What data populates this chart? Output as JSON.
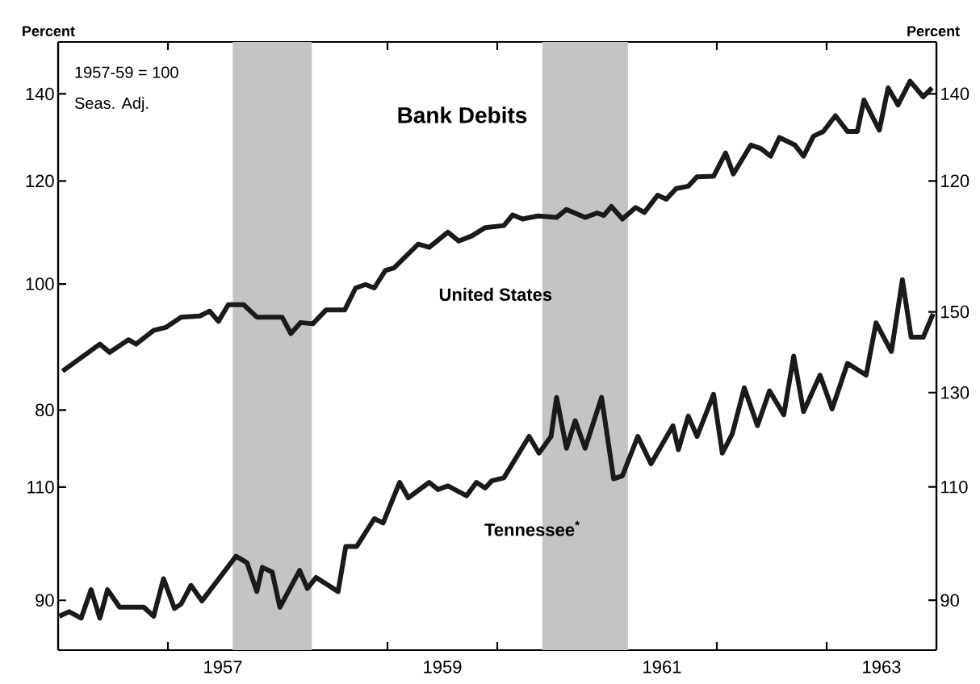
{
  "chart_data": [
    {
      "type": "line",
      "title": "Bank Debits",
      "ylabel": "Percent",
      "y2label": "Percent",
      "annotations": [
        "1957-59 = 100",
        "Seas. Adj."
      ],
      "log": "y",
      "grid": false,
      "marker": "none",
      "line_style": "solid",
      "xlim": [
        1956,
        1964
      ],
      "xticks": [
        {
          "value": 1957,
          "label": null
        },
        {
          "value": 1958,
          "label": null
        },
        {
          "value": 1959,
          "label": null
        },
        {
          "value": 1960,
          "label": null
        },
        {
          "value": 1961,
          "label": null
        },
        {
          "value": 1962,
          "label": null
        },
        {
          "value": 1963,
          "label": null
        },
        {
          "value": 1957.5,
          "label": "1957"
        },
        {
          "value": 1959.5,
          "label": "1959"
        },
        {
          "value": 1961.5,
          "label": "1961"
        },
        {
          "value": 1963.5,
          "label": "1963"
        }
      ],
      "ylim": [
        52.3,
        153.5
      ],
      "yticks": [
        80,
        100,
        120,
        140
      ],
      "y2lim": [
        12.3,
        151.9
      ],
      "y2ticks": [
        120,
        140
      ],
      "bands": [
        {
          "axis": "x",
          "from": 1957.59,
          "to": 1958.31,
          "color": "#c4c4c4"
        },
        {
          "axis": "x",
          "from": 1960.41,
          "to": 1961.19,
          "color": "#c4c4c4"
        }
      ],
      "series": [
        {
          "name": "United States",
          "color": "#1a1a1a",
          "axis": "y",
          "x": [
            1956.04,
            1956.38,
            1956.47,
            1956.64,
            1956.71,
            1956.87,
            1956.98,
            1957.12,
            1957.29,
            1957.38,
            1957.46,
            1957.55,
            1957.69,
            1957.81,
            1958.04,
            1958.12,
            1958.21,
            1958.32,
            1958.44,
            1958.61,
            1958.71,
            1958.8,
            1958.88,
            1958.98,
            1959.06,
            1959.28,
            1959.38,
            1959.55,
            1959.65,
            1959.77,
            1959.89,
            1960.06,
            1960.14,
            1960.23,
            1960.37,
            1960.54,
            1960.63,
            1960.8,
            1960.91,
            1960.97,
            1961.04,
            1961.14,
            1961.26,
            1961.34,
            1961.46,
            1961.54,
            1961.63,
            1961.74,
            1961.82,
            1961.97,
            1962.08,
            1962.15,
            1962.31,
            1962.4,
            1962.49,
            1962.57,
            1962.71,
            1962.79,
            1962.88,
            1962.97,
            1963.08,
            1963.19,
            1963.28,
            1963.34,
            1963.48,
            1963.56,
            1963.65,
            1963.76,
            1963.88,
            1963.96
          ],
          "values": [
            85.7,
            89.9,
            88.6,
            90.6,
            89.9,
            92.1,
            92.6,
            94.3,
            94.5,
            95.3,
            93.6,
            96.4,
            96.4,
            94.3,
            94.3,
            91.6,
            93.4,
            93.2,
            95.5,
            95.5,
            99.3,
            99.9,
            99.3,
            102.4,
            102.9,
            107.3,
            106.7,
            109.6,
            107.9,
            108.9,
            110.5,
            110.9,
            113.0,
            112.2,
            112.8,
            112.5,
            114.1,
            112.5,
            113.4,
            112.9,
            114.7,
            112.2,
            114.5,
            113.5,
            117.0,
            116.2,
            118.4,
            118.9,
            120.9,
            121.0,
            126.1,
            121.5,
            127.9,
            127.1,
            125.4,
            129.6,
            127.9,
            125.4,
            129.9,
            131.0,
            134.7,
            131.0,
            131.0,
            138.5,
            131.3,
            141.5,
            137.3,
            143.2,
            139.3,
            141.5
          ]
        }
      ]
    },
    {
      "type": "line",
      "log": "y2",
      "marker": "none",
      "line_style": "solid",
      "tick_labels": "y",
      "xlim": [
        1956,
        1964
      ],
      "ylim": [
        81.2,
        188.6
      ],
      "yticks": [
        90,
        110
      ],
      "y2lim": [
        82.4,
        241.9
      ],
      "y2ticks": [
        90,
        110,
        130,
        150
      ],
      "series": [
        {
          "name": "Tennessee$^{*}$",
          "color": "#1a1a1a",
          "axis": "y2",
          "x": [
            1956.01,
            1956.1,
            1956.21,
            1956.3,
            1956.38,
            1956.45,
            1956.56,
            1956.78,
            1956.87,
            1956.96,
            1957.06,
            1957.12,
            1957.21,
            1957.31,
            1957.62,
            1957.72,
            1957.81,
            1957.86,
            1957.95,
            1958.02,
            1958.2,
            1958.27,
            1958.35,
            1958.55,
            1958.62,
            1958.72,
            1958.88,
            1958.96,
            1959.11,
            1959.19,
            1959.38,
            1959.46,
            1959.55,
            1959.72,
            1959.81,
            1959.89,
            1959.95,
            1960.06,
            1960.29,
            1960.38,
            1960.49,
            1960.54,
            1960.63,
            1960.71,
            1960.8,
            1960.95,
            1961.06,
            1961.14,
            1961.28,
            1961.4,
            1961.6,
            1961.65,
            1961.74,
            1961.82,
            1961.97,
            1962.05,
            1962.14,
            1962.25,
            1962.37,
            1962.48,
            1962.61,
            1962.7,
            1962.79,
            1962.94,
            1963.05,
            1963.19,
            1963.36,
            1963.45,
            1963.59,
            1963.69,
            1963.77,
            1963.88,
            1963.97
          ],
          "values": [
            87.5,
            88.2,
            87.2,
            91.7,
            87.2,
            91.7,
            88.9,
            88.9,
            87.5,
            93.5,
            88.7,
            89.4,
            92.4,
            89.9,
            97.3,
            96.2,
            91.4,
            95.4,
            94.6,
            88.9,
            94.9,
            91.9,
            93.7,
            91.4,
            99.0,
            99.0,
            104.0,
            103.2,
            110.9,
            107.9,
            110.9,
            109.5,
            110.2,
            108.3,
            110.9,
            109.8,
            111.2,
            111.8,
            120.3,
            116.8,
            120.3,
            128.9,
            117.8,
            123.7,
            117.8,
            128.9,
            111.6,
            112.2,
            120.3,
            114.6,
            122.6,
            117.5,
            124.7,
            120.3,
            129.6,
            116.8,
            120.8,
            131.1,
            122.6,
            130.4,
            125.0,
            138.7,
            125.7,
            134.1,
            126.3,
            136.9,
            134.1,
            147.1,
            139.8,
            158.8,
            143.4,
            143.4,
            149.5
          ]
        }
      ]
    }
  ]
}
